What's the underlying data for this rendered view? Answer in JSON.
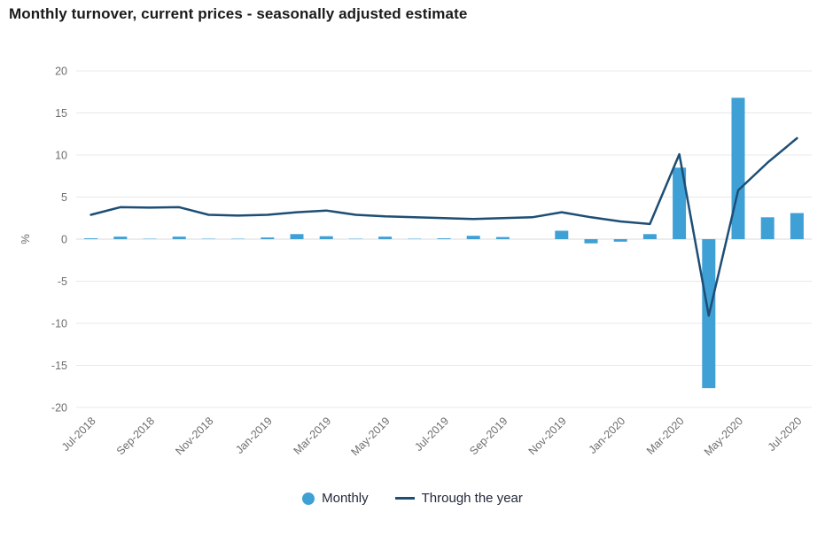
{
  "title": "Monthly turnover, current prices - seasonally adjusted estimate",
  "colors": {
    "bar": "#3FA0D6",
    "line": "#1D4E75",
    "grid": "#E8E8E8",
    "zero_line": "#D8D8D8",
    "tick_text": "#6E6E6E",
    "title_text": "#1A1A1A",
    "legend_text": "#23293A",
    "background": "#FFFFFF"
  },
  "y_axis": {
    "label": "%",
    "min": -20,
    "max": 20,
    "step": 5,
    "ticks": [
      20,
      15,
      10,
      5,
      0,
      -5,
      -10,
      -15,
      -20
    ]
  },
  "x_axis": {
    "tick_every": 2,
    "labels_shown": [
      "Jul-2018",
      "Sep-2018",
      "Nov-2018",
      "Jan-2019",
      "Mar-2019",
      "May-2019",
      "Jul-2019",
      "Sep-2019",
      "Nov-2019",
      "Jan-2020",
      "Mar-2020",
      "May-2020",
      "Jul-2020"
    ]
  },
  "legend": [
    {
      "label": "Monthly",
      "marker": "circle"
    },
    {
      "label": "Through the year",
      "marker": "line"
    }
  ],
  "chart_data": {
    "type": "bar",
    "title": "Monthly turnover, current prices - seasonally adjusted estimate",
    "categories": [
      "Jul-2018",
      "Aug-2018",
      "Sep-2018",
      "Oct-2018",
      "Nov-2018",
      "Dec-2018",
      "Jan-2019",
      "Feb-2019",
      "Mar-2019",
      "Apr-2019",
      "May-2019",
      "Jun-2019",
      "Jul-2019",
      "Aug-2019",
      "Sep-2019",
      "Oct-2019",
      "Nov-2019",
      "Dec-2019",
      "Jan-2020",
      "Feb-2020",
      "Mar-2020",
      "Apr-2020",
      "May-2020",
      "Jun-2020",
      "Jul-2020"
    ],
    "series": [
      {
        "name": "Monthly",
        "type": "bar",
        "color": "#3FA0D6",
        "values": [
          0.1,
          0.3,
          0.05,
          0.3,
          0.05,
          0.05,
          0.2,
          0.6,
          0.35,
          0.05,
          0.3,
          0.05,
          0.1,
          0.4,
          0.25,
          0.0,
          1.0,
          -0.5,
          -0.3,
          0.6,
          8.5,
          -17.7,
          16.8,
          2.6,
          3.1
        ]
      },
      {
        "name": "Through the year",
        "type": "line",
        "color": "#1D4E75",
        "values": [
          2.9,
          3.8,
          3.75,
          3.8,
          2.9,
          2.8,
          2.9,
          3.2,
          3.4,
          2.9,
          2.7,
          2.6,
          2.5,
          2.4,
          2.5,
          2.6,
          3.2,
          2.6,
          2.1,
          1.8,
          10.1,
          -9.1,
          5.8,
          9.1,
          12.0
        ]
      }
    ],
    "xlabel": "",
    "ylabel": "%",
    "ylim": [
      -20,
      20
    ],
    "grid": "horizontal-only",
    "legend_position": "bottom-center"
  }
}
